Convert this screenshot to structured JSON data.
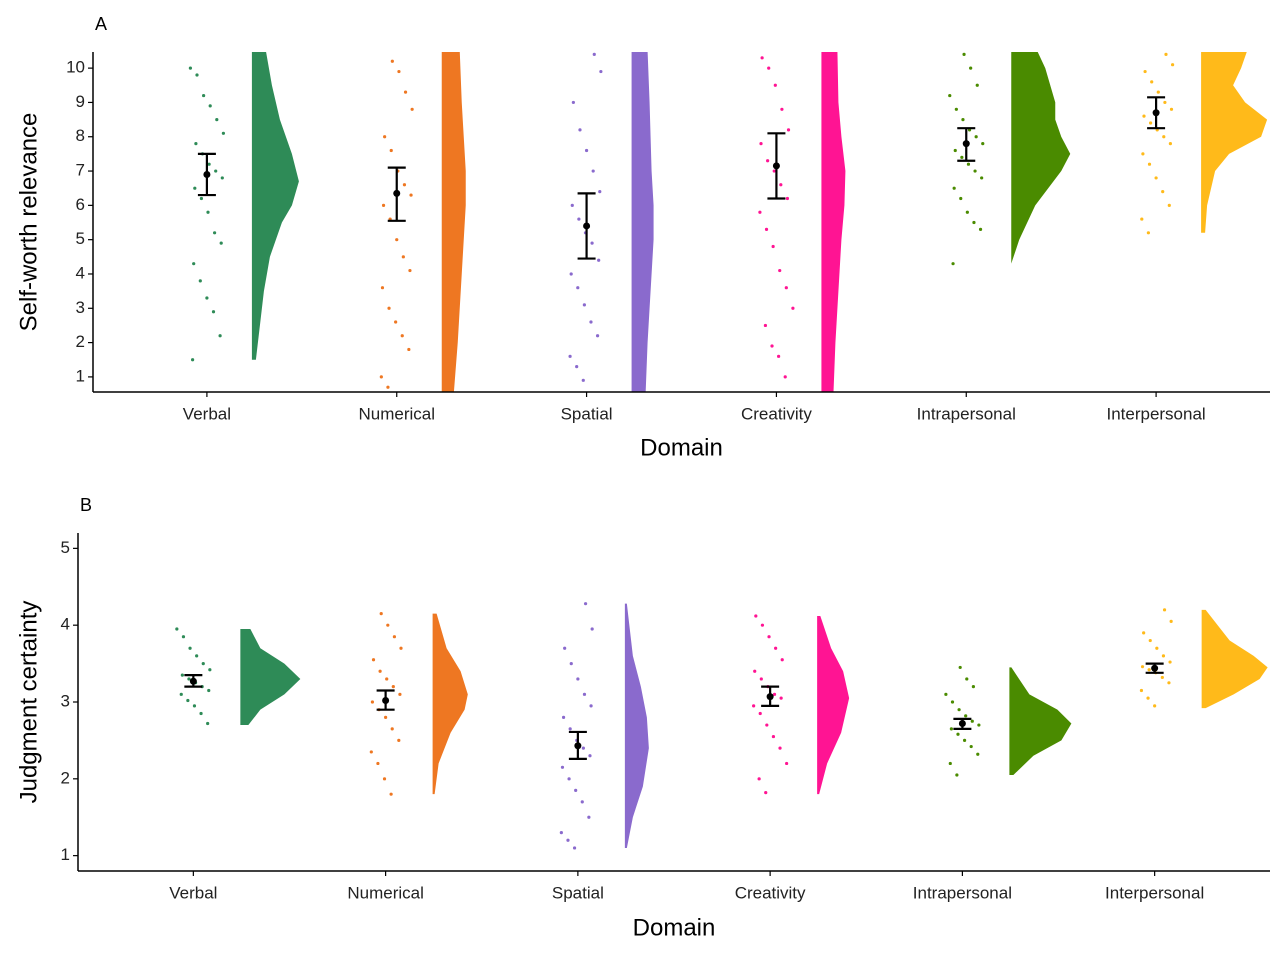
{
  "chart_data": [
    {
      "type": "raincloud",
      "title": "A",
      "xlabel": "Domain",
      "ylabel": "Self-worth relevance",
      "ylim": [
        0.56,
        10.47
      ],
      "yticks": [
        1,
        2,
        3,
        4,
        5,
        6,
        7,
        8,
        9,
        10
      ],
      "categories": [
        "Verbal",
        "Numerical",
        "Spatial",
        "Creativity",
        "Intrapersonal",
        "Interpersonal"
      ],
      "groups": [
        {
          "color": "#2e8b57",
          "mean": 6.9,
          "error_low": 6.3,
          "error_high": 7.5,
          "points": [
            10,
            9.8,
            9.2,
            8.9,
            8.5,
            8.1,
            7.8,
            7.5,
            7.2,
            7.0,
            6.8,
            6.5,
            6.2,
            5.8,
            5.2,
            4.9,
            4.3,
            3.8,
            3.3,
            2.9,
            2.2,
            1.5
          ],
          "density_y": [
            1.5,
            2.5,
            3.5,
            4.5,
            5.5,
            6.0,
            6.7,
            7.5,
            8.5,
            9.5,
            10.5
          ],
          "density": [
            0.02,
            0.04,
            0.06,
            0.09,
            0.15,
            0.2,
            0.235,
            0.2,
            0.14,
            0.1,
            0.07
          ]
        },
        {
          "color": "#ee7722",
          "mean": 6.35,
          "error_low": 5.55,
          "error_high": 7.1,
          "points": [
            10.2,
            9.9,
            9.3,
            8.8,
            8.0,
            7.6,
            7.0,
            6.6,
            6.3,
            6.0,
            5.6,
            5.0,
            4.5,
            4.1,
            3.6,
            3.0,
            2.6,
            2.2,
            1.8,
            1.0,
            0.7
          ],
          "density_y": [
            0.5,
            2,
            3,
            4,
            5,
            6,
            7,
            8,
            9,
            10.5
          ],
          "density": [
            0.06,
            0.08,
            0.09,
            0.1,
            0.11,
            0.12,
            0.12,
            0.11,
            0.1,
            0.09
          ]
        },
        {
          "color": "#8a6acd",
          "mean": 5.4,
          "error_low": 4.45,
          "error_high": 6.35,
          "points": [
            10.4,
            9.9,
            9.0,
            8.2,
            7.6,
            7.0,
            6.4,
            6.0,
            5.6,
            5.2,
            4.9,
            4.4,
            4.0,
            3.6,
            3.1,
            2.6,
            2.2,
            1.6,
            1.3,
            0.9
          ],
          "density_y": [
            0.5,
            2,
            3,
            4,
            5,
            5.5,
            6,
            7,
            8,
            9,
            10.5
          ],
          "density": [
            0.07,
            0.08,
            0.09,
            0.1,
            0.11,
            0.11,
            0.11,
            0.1,
            0.095,
            0.09,
            0.08
          ]
        },
        {
          "color": "#ff1493",
          "mean": 7.15,
          "error_low": 6.2,
          "error_high": 8.1,
          "points": [
            10.3,
            10.0,
            9.5,
            8.8,
            8.2,
            7.8,
            7.3,
            7.0,
            6.6,
            6.2,
            5.8,
            5.3,
            4.8,
            4.1,
            3.6,
            3.0,
            2.5,
            1.9,
            1.6,
            1.0
          ],
          "density_y": [
            0.5,
            2,
            3,
            4,
            5,
            6,
            7,
            8,
            9,
            10.5
          ],
          "density": [
            0.06,
            0.07,
            0.08,
            0.09,
            0.1,
            0.115,
            0.12,
            0.1,
            0.085,
            0.08
          ]
        },
        {
          "color": "#4a8b00",
          "mean": 7.8,
          "error_low": 7.3,
          "error_high": 8.25,
          "points": [
            10.4,
            10.0,
            9.5,
            9.2,
            8.8,
            8.5,
            8.2,
            8.0,
            7.8,
            7.6,
            7.4,
            7.2,
            7.0,
            6.8,
            6.5,
            6.2,
            5.8,
            5.5,
            5.3,
            4.3
          ],
          "density_y": [
            4.3,
            5,
            6,
            7,
            7.5,
            8,
            8.5,
            9,
            10,
            10.5
          ],
          "density": [
            0.0,
            0.04,
            0.12,
            0.25,
            0.295,
            0.25,
            0.22,
            0.22,
            0.17,
            0.13
          ]
        },
        {
          "color": "#ffba1a",
          "mean": 8.7,
          "error_low": 8.25,
          "error_high": 9.15,
          "points": [
            10.4,
            10.1,
            9.9,
            9.6,
            9.3,
            9.0,
            8.8,
            8.6,
            8.4,
            8.2,
            8.0,
            7.8,
            7.5,
            7.2,
            6.8,
            6.4,
            6.0,
            5.6,
            5.2
          ],
          "density_y": [
            5.2,
            6,
            7,
            7.5,
            8,
            8.5,
            9,
            9.5,
            10,
            10.5
          ],
          "density": [
            0.02,
            0.03,
            0.07,
            0.14,
            0.3,
            0.33,
            0.22,
            0.16,
            0.2,
            0.23
          ]
        }
      ]
    },
    {
      "type": "raincloud",
      "title": "B",
      "xlabel": "Domain",
      "ylabel": "Judgment certainty",
      "ylim": [
        0.8,
        5.2
      ],
      "yticks": [
        1,
        2,
        3,
        4,
        5
      ],
      "categories": [
        "Verbal",
        "Numerical",
        "Spatial",
        "Creativity",
        "Intrapersonal",
        "Interpersonal"
      ],
      "groups": [
        {
          "color": "#2e8b57",
          "mean": 3.27,
          "error_low": 3.2,
          "error_high": 3.35,
          "points": [
            3.95,
            3.85,
            3.7,
            3.6,
            3.5,
            3.42,
            3.35,
            3.3,
            3.25,
            3.2,
            3.15,
            3.1,
            3.02,
            2.95,
            2.85,
            2.72
          ],
          "density_y": [
            2.7,
            2.9,
            3.1,
            3.3,
            3.5,
            3.7,
            3.95
          ],
          "density": [
            0.2,
            0.5,
            1.1,
            1.5,
            1.1,
            0.5,
            0.25
          ]
        },
        {
          "color": "#ee7722",
          "mean": 3.02,
          "error_low": 2.9,
          "error_high": 3.15,
          "points": [
            4.15,
            4.0,
            3.85,
            3.7,
            3.55,
            3.4,
            3.3,
            3.2,
            3.1,
            3.0,
            2.9,
            2.8,
            2.65,
            2.5,
            2.35,
            2.2,
            2.0,
            1.8
          ],
          "density_y": [
            1.8,
            2.2,
            2.6,
            2.9,
            3.1,
            3.4,
            3.7,
            4.15
          ],
          "density": [
            0.05,
            0.15,
            0.45,
            0.8,
            0.88,
            0.7,
            0.35,
            0.1
          ]
        },
        {
          "color": "#8a6acd",
          "mean": 2.43,
          "error_low": 2.26,
          "error_high": 2.61,
          "points": [
            4.28,
            3.95,
            3.7,
            3.5,
            3.3,
            3.1,
            2.95,
            2.8,
            2.65,
            2.5,
            2.4,
            2.3,
            2.15,
            2.0,
            1.85,
            1.7,
            1.5,
            1.3,
            1.2,
            1.1
          ],
          "density_y": [
            1.1,
            1.5,
            1.9,
            2.4,
            2.8,
            3.2,
            3.6,
            4.28
          ],
          "density": [
            0.05,
            0.2,
            0.45,
            0.6,
            0.55,
            0.4,
            0.2,
            0.05
          ]
        },
        {
          "color": "#ff1493",
          "mean": 3.07,
          "error_low": 2.95,
          "error_high": 3.2,
          "points": [
            4.12,
            4.0,
            3.85,
            3.7,
            3.55,
            3.4,
            3.3,
            3.2,
            3.1,
            3.05,
            2.95,
            2.85,
            2.7,
            2.55,
            2.4,
            2.2,
            2.0,
            1.82
          ],
          "density_y": [
            1.8,
            2.2,
            2.6,
            3.05,
            3.4,
            3.7,
            4.12
          ],
          "density": [
            0.05,
            0.25,
            0.6,
            0.8,
            0.65,
            0.35,
            0.08
          ]
        },
        {
          "color": "#4a8b00",
          "mean": 2.72,
          "error_low": 2.65,
          "error_high": 2.78,
          "points": [
            3.45,
            3.3,
            3.2,
            3.1,
            3.0,
            2.9,
            2.82,
            2.75,
            2.7,
            2.65,
            2.58,
            2.5,
            2.42,
            2.32,
            2.2,
            2.05
          ],
          "density_y": [
            2.05,
            2.3,
            2.5,
            2.72,
            2.9,
            3.1,
            3.45
          ],
          "density": [
            0.1,
            0.6,
            1.3,
            1.55,
            1.2,
            0.5,
            0.05
          ]
        },
        {
          "color": "#ffba1a",
          "mean": 3.44,
          "error_low": 3.38,
          "error_high": 3.5,
          "points": [
            4.2,
            4.05,
            3.9,
            3.8,
            3.7,
            3.6,
            3.52,
            3.46,
            3.42,
            3.38,
            3.32,
            3.25,
            3.15,
            3.05,
            2.95
          ],
          "density_y": [
            2.92,
            3.1,
            3.3,
            3.45,
            3.6,
            3.8,
            4.2
          ],
          "density": [
            0.1,
            0.8,
            1.45,
            1.65,
            1.3,
            0.7,
            0.1
          ]
        }
      ]
    }
  ]
}
